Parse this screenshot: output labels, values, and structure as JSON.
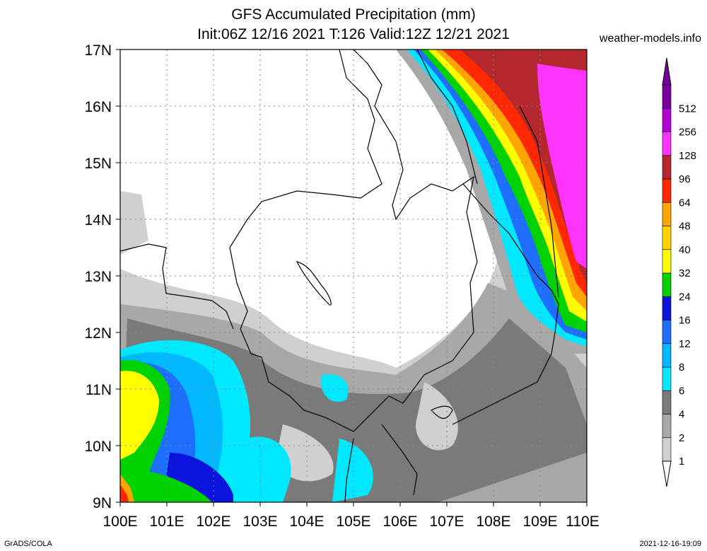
{
  "title_line1": "GFS Accumulated Precipitation (mm)",
  "title_line2": "Init:06Z 12/16 2021 T:126 Valid:12Z 12/21 2021",
  "site": "weather-models.info",
  "footer_left": "GrADS/COLA",
  "footer_right": "2021-12-16-19:09",
  "lat_labels": [
    "17N",
    "16N",
    "15N",
    "14N",
    "13N",
    "12N",
    "11N",
    "10N",
    "9N"
  ],
  "lon_labels": [
    "100E",
    "101E",
    "102E",
    "103E",
    "104E",
    "105E",
    "106E",
    "107E",
    "108E",
    "109E",
    "110E"
  ],
  "legend": {
    "levels": [
      "1",
      "2",
      "4",
      "6",
      "8",
      "12",
      "16",
      "24",
      "32",
      "40",
      "48",
      "64",
      "96",
      "128",
      "256",
      "512"
    ],
    "colors": [
      "#d0d0d0",
      "#a8a8a8",
      "#7a7a7a",
      "#00e8ff",
      "#00b8ff",
      "#1e6eff",
      "#0a14dc",
      "#00d200",
      "#ffff00",
      "#ffd200",
      "#ffa500",
      "#ff2800",
      "#b4282d",
      "#ff32ff",
      "#b400d2",
      "#7800a0"
    ]
  }
}
